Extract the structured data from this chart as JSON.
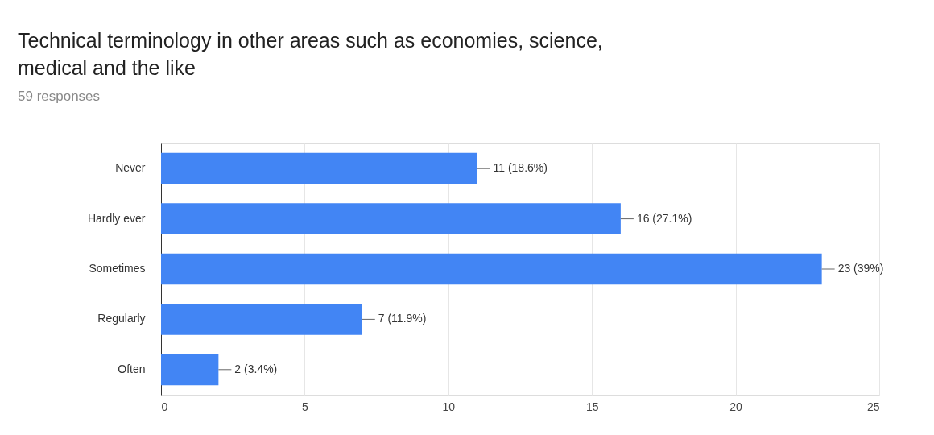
{
  "chart_data": {
    "type": "bar",
    "orientation": "horizontal",
    "title": [
      "Technical terminology in other areas such as economies, science,",
      "medical and the like"
    ],
    "subtitle": "59 responses",
    "categories": [
      "Never",
      "Hardly ever",
      "Sometimes",
      "Regularly",
      "Often"
    ],
    "values": [
      11,
      16,
      23,
      7,
      2
    ],
    "value_labels": [
      "11 (18.6%)",
      "16 (27.1%)",
      "23 (39%)",
      "7 (11.9%)",
      "2 (3.4%)"
    ],
    "color": "#4285f4",
    "xlim": [
      0,
      25
    ],
    "xticks": [
      0,
      5,
      10,
      15,
      20,
      25
    ],
    "grid": "x",
    "legend": false
  }
}
